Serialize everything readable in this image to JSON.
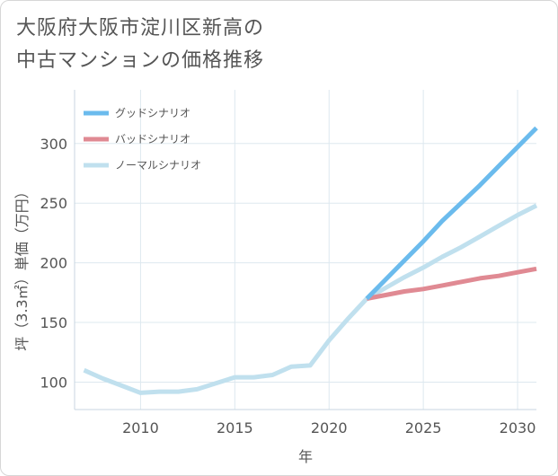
{
  "title": {
    "line1": "大阪府大阪市淀川区新高の",
    "line2": "中古マンションの価格推移"
  },
  "chart_data": {
    "type": "line",
    "xlabel": "年",
    "ylabel": "坪（3.3㎡）単価（万円）",
    "xlim": [
      2006.5,
      2031
    ],
    "ylim": [
      77,
      345
    ],
    "x_ticks": [
      2010,
      2015,
      2020,
      2025,
      2030
    ],
    "y_ticks": [
      100,
      150,
      200,
      250,
      300
    ],
    "grid": true,
    "legend_position": "top-left",
    "series": [
      {
        "name": "グッドシナリオ",
        "color": "#6bbbed",
        "x": [
          2022,
          2023,
          2024,
          2025,
          2026,
          2027,
          2028,
          2029,
          2030,
          2031
        ],
        "y": [
          170,
          186,
          202,
          218,
          235,
          250,
          265,
          281,
          297,
          313
        ]
      },
      {
        "name": "バッドシナリオ",
        "color": "#e08a93",
        "x": [
          2022,
          2023,
          2024,
          2025,
          2026,
          2027,
          2028,
          2029,
          2030,
          2031
        ],
        "y": [
          170,
          173,
          176,
          178,
          181,
          184,
          187,
          189,
          192,
          195
        ]
      },
      {
        "name": "ノーマルシナリオ",
        "color": "#c0e0ee",
        "x": [
          2007,
          2008,
          2009,
          2010,
          2011,
          2012,
          2013,
          2014,
          2015,
          2016,
          2017,
          2018,
          2019,
          2020,
          2021,
          2022,
          2023,
          2024,
          2025,
          2026,
          2027,
          2028,
          2029,
          2030,
          2031
        ],
        "y": [
          110,
          103,
          97,
          91,
          92,
          92,
          94,
          99,
          104,
          104,
          106,
          113,
          114,
          135,
          153,
          170,
          179,
          188,
          196,
          205,
          213,
          222,
          231,
          240,
          248
        ]
      }
    ]
  }
}
